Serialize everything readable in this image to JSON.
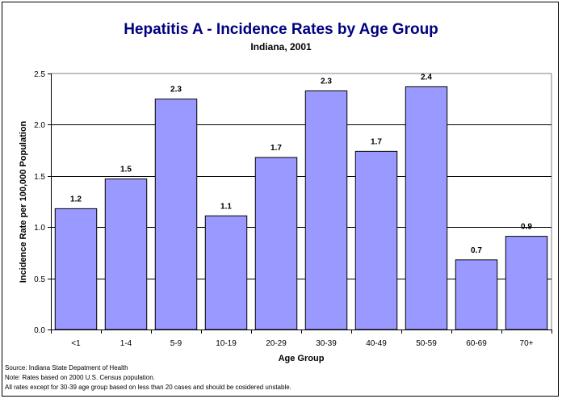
{
  "chart_data": {
    "type": "bar",
    "title": "Hepatitis A - Incidence Rates by Age Group",
    "subtitle": "Indiana, 2001",
    "xlabel": "Age Group",
    "ylabel": "Incidence Rate per 100,000 Population",
    "categories": [
      "<1",
      "1-4",
      "5-9",
      "10-19",
      "20-29",
      "30-39",
      "40-49",
      "50-59",
      "60-69",
      "70+"
    ],
    "values": [
      1.18,
      1.47,
      2.25,
      1.11,
      1.68,
      2.33,
      1.74,
      2.37,
      0.68,
      0.91
    ],
    "data_labels": [
      "1.2",
      "1.5",
      "2.3",
      "1.1",
      "1.7",
      "2.3",
      "1.7",
      "2.4",
      "0.7",
      "0.9"
    ],
    "ylim": [
      0,
      2.5
    ],
    "yticks": [
      0.0,
      0.5,
      1.0,
      1.5,
      2.0,
      2.5
    ],
    "ytick_labels": [
      "0.0",
      "0.5",
      "1.0",
      "1.5",
      "2.0",
      "2.5"
    ],
    "grid": true,
    "legend": "none",
    "bar_color": "#9999FF",
    "title_color": "#000080",
    "notes": [
      "Source: Indiana State Depatment of Health",
      "Note: Rates based on 2000 U.S. Census population.",
      "All rates except for 30-39 age group based on less than 20 cases and should be cosidered unstable."
    ]
  }
}
